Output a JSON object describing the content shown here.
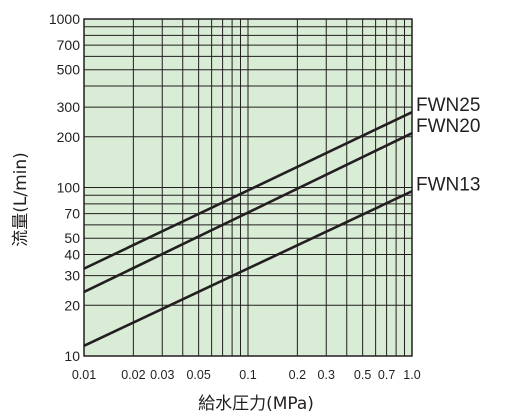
{
  "chart_data": {
    "type": "line",
    "title": "",
    "xlabel": "給水圧力(MPa)",
    "ylabel": "流量(L/min)",
    "x_scale": "log",
    "y_scale": "log",
    "xlim": [
      0.01,
      1.0
    ],
    "ylim": [
      10,
      1000
    ],
    "grid": true,
    "x_ticks": [
      0.01,
      0.02,
      0.03,
      0.05,
      0.1,
      0.2,
      0.3,
      0.5,
      0.7,
      1.0
    ],
    "x_tick_labels": [
      "0.01",
      "0.02",
      "0.03",
      "0.05",
      "0.1",
      "0.2",
      "0.3",
      "0.5",
      "0.7",
      "1.0"
    ],
    "y_ticks": [
      10,
      20,
      30,
      40,
      50,
      70,
      100,
      200,
      300,
      500,
      700,
      1000
    ],
    "y_tick_labels": [
      "10",
      "20",
      "30",
      "40",
      "50",
      "70",
      "100",
      "200",
      "300",
      "500",
      "700",
      "1000"
    ],
    "series": [
      {
        "name": "FWN25",
        "x": [
          0.01,
          1.0
        ],
        "y": [
          33,
          280
        ]
      },
      {
        "name": "FWN20",
        "x": [
          0.01,
          1.0
        ],
        "y": [
          24,
          210
        ]
      },
      {
        "name": "FWN13",
        "x": [
          0.01,
          1.0
        ],
        "y": [
          11.5,
          95
        ]
      }
    ],
    "colors": {
      "plot_background": "#d9ecd6",
      "grid": "#231f20",
      "line": "#231f20"
    }
  }
}
